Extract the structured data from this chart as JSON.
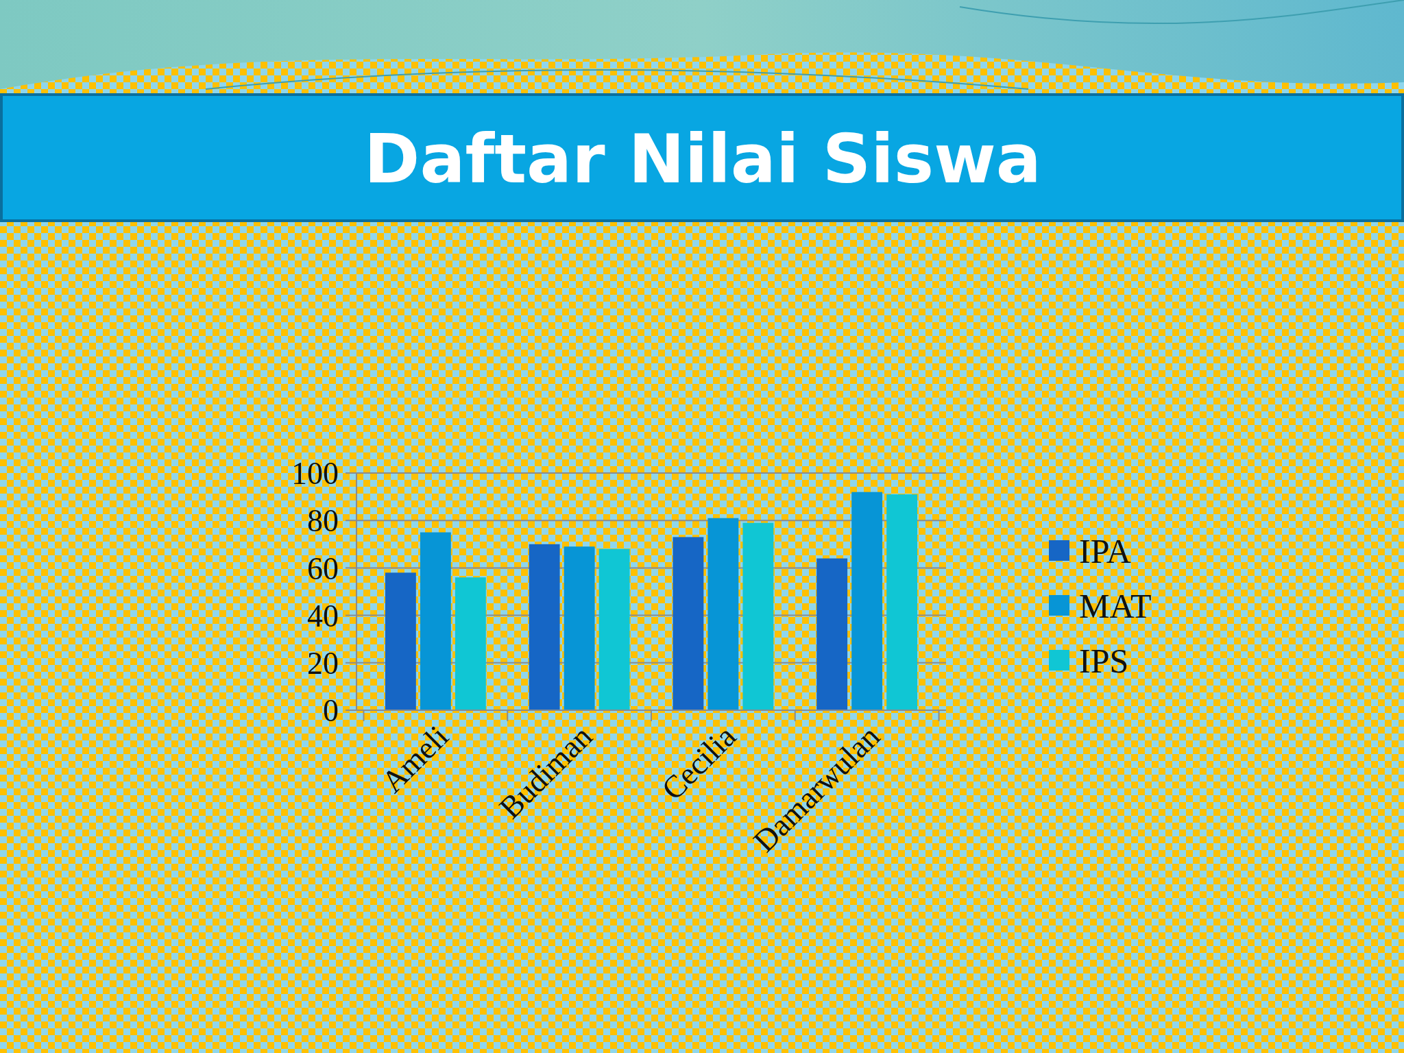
{
  "chart_data": {
    "type": "bar",
    "title": "Daftar Nilai Siswa",
    "categories": [
      "Ameli",
      "Budiman",
      "Cecilia",
      "Damarwulan"
    ],
    "series": [
      {
        "name": "IPA",
        "color": "#1666c5",
        "values": [
          58,
          70,
          73,
          64
        ]
      },
      {
        "name": "MAT",
        "color": "#0795d6",
        "values": [
          75,
          69,
          81,
          92
        ]
      },
      {
        "name": "IPS",
        "color": "#10c6d4",
        "values": [
          56,
          68,
          79,
          91
        ]
      }
    ],
    "ylim": [
      0,
      100
    ],
    "yticks": [
      0,
      20,
      40,
      60,
      80,
      100
    ],
    "grid": "y",
    "legend": "right"
  }
}
